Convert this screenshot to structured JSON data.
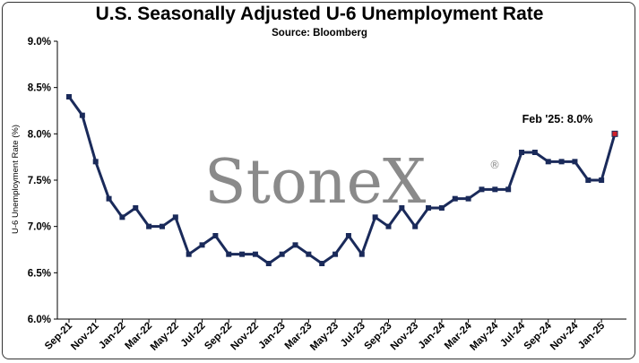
{
  "chart_data": {
    "type": "line",
    "title": "U.S. Seasonally Adjusted U-6 Unemployment Rate",
    "subtitle": "Source: Bloomberg",
    "ylabel": "U-6 Unemployment Rate (%)",
    "xlabel": "",
    "ylim": [
      6.0,
      9.0
    ],
    "yticks": [
      "6.0%",
      "6.5%",
      "7.0%",
      "7.5%",
      "8.0%",
      "8.5%",
      "9.0%"
    ],
    "ytick_values": [
      6.0,
      6.5,
      7.0,
      7.5,
      8.0,
      8.5,
      9.0
    ],
    "grid": false,
    "x": [
      "Sep-21",
      "Oct-21",
      "Nov-21",
      "Dec-21",
      "Jan-22",
      "Feb-22",
      "Mar-22",
      "Apr-22",
      "May-22",
      "Jun-22",
      "Jul-22",
      "Aug-22",
      "Sep-22",
      "Oct-22",
      "Nov-22",
      "Dec-22",
      "Jan-23",
      "Feb-23",
      "Mar-23",
      "Apr-23",
      "May-23",
      "Jun-23",
      "Jul-23",
      "Aug-23",
      "Sep-23",
      "Oct-23",
      "Nov-23",
      "Dec-23",
      "Jan-24",
      "Feb-24",
      "Mar-24",
      "Apr-24",
      "May-24",
      "Jun-24",
      "Jul-24",
      "Aug-24",
      "Sep-24",
      "Oct-24",
      "Nov-24",
      "Dec-24",
      "Jan-25",
      "Feb-25"
    ],
    "xtick_labels": [
      "Sep-21",
      "Nov-21",
      "Jan-22",
      "Mar-22",
      "May-22",
      "Jul-22",
      "Sep-22",
      "Nov-22",
      "Jan-23",
      "Mar-23",
      "May-23",
      "Jul-23",
      "Sep-23",
      "Nov-23",
      "Jan-24",
      "Mar-24",
      "May-24",
      "Jul-24",
      "Sep-24",
      "Nov-24",
      "Jan-25"
    ],
    "series": [
      {
        "values": [
          8.4,
          8.2,
          7.7,
          7.3,
          7.1,
          7.2,
          7.0,
          7.0,
          7.1,
          6.7,
          6.8,
          6.9,
          6.7,
          6.7,
          6.7,
          6.6,
          6.7,
          6.8,
          6.7,
          6.6,
          6.7,
          6.9,
          6.7,
          7.1,
          7.0,
          7.2,
          7.0,
          7.2,
          7.2,
          7.3,
          7.3,
          7.4,
          7.4,
          7.4,
          7.8,
          7.8,
          7.7,
          7.7,
          7.7,
          7.5,
          7.5,
          8.0
        ],
        "color": "#1a2a5a"
      }
    ],
    "highlight": {
      "index": 41,
      "color": "#d0202a"
    },
    "annotation": "Feb '25:  8.0%",
    "watermark": "StoneX",
    "watermark_mark": "®"
  }
}
